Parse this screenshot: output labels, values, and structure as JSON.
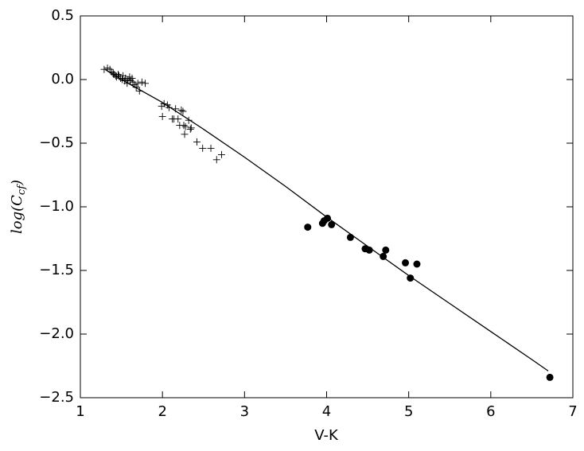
{
  "chart_data": {
    "type": "scatter",
    "xlabel": "V-K",
    "ylabel": [
      "log(C",
      "cf",
      ")"
    ],
    "xlim": [
      1,
      7
    ],
    "ylim": [
      -2.5,
      0.5
    ],
    "xticks": [
      1,
      2,
      3,
      4,
      5,
      6,
      7
    ],
    "yticks": [
      0.5,
      {
        "value": 0,
        "label": "0.0"
      },
      {
        "value": -0.5,
        "label": "−0.5"
      },
      {
        "value": -1,
        "label": "−1.0"
      },
      {
        "value": -1.5,
        "label": "−1.5"
      },
      {
        "value": -2,
        "label": "−2.0"
      },
      {
        "value": -2.5,
        "label": "−2.5"
      }
    ],
    "grid": false,
    "series": [
      {
        "color": "#000000",
        "marker": "none",
        "line": true,
        "x": [
          1.3,
          1.5,
          2,
          2.5,
          3,
          3.5,
          4,
          4.5,
          5,
          5.5,
          6,
          6.5,
          6.7
        ],
        "y": [
          0.08,
          0.0,
          -0.18,
          -0.39,
          -0.61,
          -0.84,
          -1.08,
          -1.31,
          -1.54,
          -1.76,
          -1.98,
          -2.2,
          -2.29
        ]
      },
      {
        "color": "#000000",
        "marker": "+",
        "line": false,
        "x": [
          1.29,
          1.33,
          1.36,
          1.38,
          1.4,
          1.41,
          1.43,
          1.44,
          1.46,
          1.47,
          1.49,
          1.51,
          1.52,
          1.54,
          1.55,
          1.57,
          1.58,
          1.6,
          1.61,
          1.63,
          1.64,
          1.66,
          1.68,
          1.7,
          1.72,
          1.75,
          1.79,
          1.99,
          2.02,
          2.06,
          2.08,
          2.0,
          2.12,
          2.14,
          2.16,
          2.19,
          2.21,
          2.23,
          2.25,
          2.26,
          2.28,
          2.32,
          2.34,
          2.27,
          2.35,
          2.42,
          2.49,
          2.59,
          2.66,
          2.72
        ],
        "y": [
          0.08,
          0.09,
          0.08,
          0.06,
          0.05,
          0.04,
          0.03,
          0.02,
          0.04,
          0.03,
          0.01,
          0.0,
          0.03,
          -0.01,
          0.01,
          -0.03,
          0.0,
          0.02,
          -0.01,
          0.01,
          -0.02,
          -0.04,
          -0.06,
          -0.03,
          -0.09,
          -0.02,
          -0.03,
          -0.21,
          -0.19,
          -0.2,
          -0.22,
          -0.29,
          -0.31,
          -0.31,
          -0.23,
          -0.31,
          -0.36,
          -0.24,
          -0.25,
          -0.36,
          -0.37,
          -0.32,
          -0.39,
          -0.43,
          -0.38,
          -0.49,
          -0.54,
          -0.54,
          -0.63,
          -0.59
        ]
      },
      {
        "color": "#000000",
        "marker": "o",
        "line": false,
        "x": [
          3.77,
          3.95,
          3.97,
          4.01,
          4.06,
          4.29,
          4.47,
          4.52,
          4.69,
          4.72,
          4.96,
          5.02,
          5.1,
          6.72
        ],
        "y": [
          -1.16,
          -1.13,
          -1.11,
          -1.09,
          -1.14,
          -1.24,
          -1.33,
          -1.34,
          -1.39,
          -1.34,
          -1.44,
          -1.56,
          -1.45,
          -2.34
        ]
      }
    ]
  }
}
